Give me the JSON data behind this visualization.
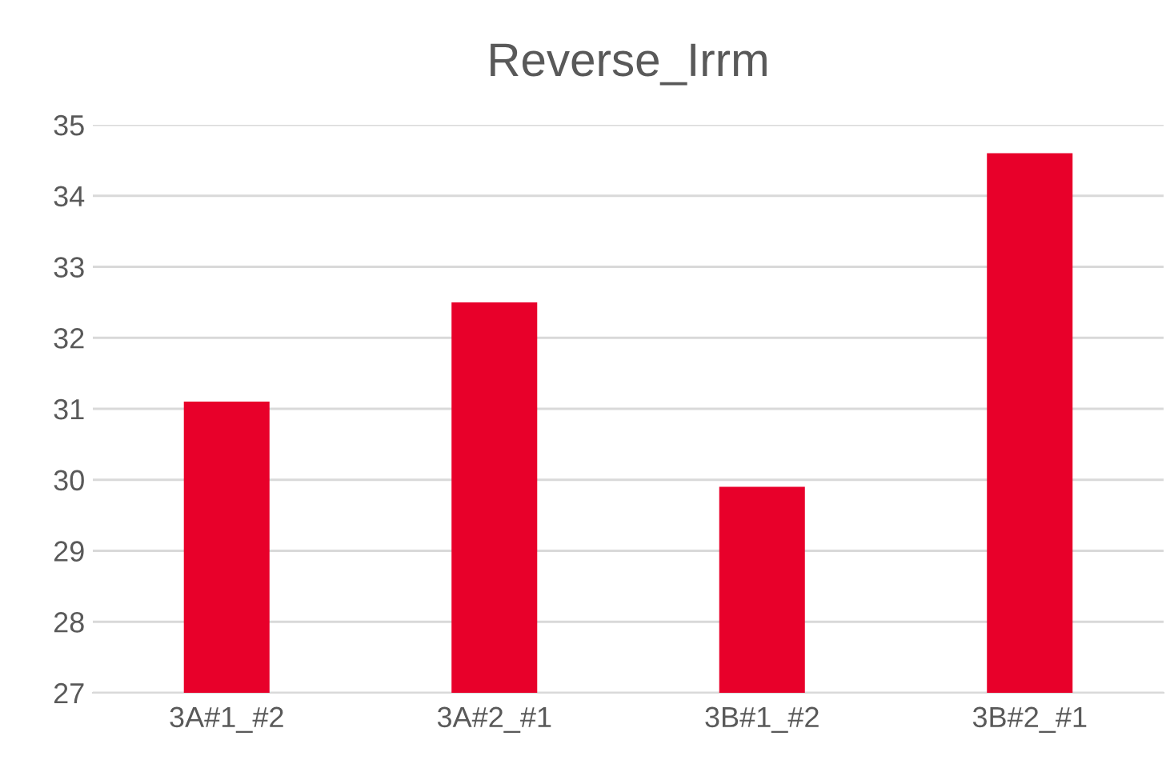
{
  "chart_data": {
    "type": "bar",
    "title": "Reverse_Irrm",
    "categories": [
      "3A#1_#2",
      "3A#2_#1",
      "3B#1_#2",
      "3B#2_#1"
    ],
    "values": [
      31.1,
      32.5,
      29.9,
      34.6
    ],
    "color": "#e8002a",
    "ylim": [
      27,
      35
    ],
    "yticks": [
      27,
      28,
      29,
      30,
      31,
      32,
      33,
      34,
      35
    ],
    "grid": "y",
    "legend": false
  }
}
